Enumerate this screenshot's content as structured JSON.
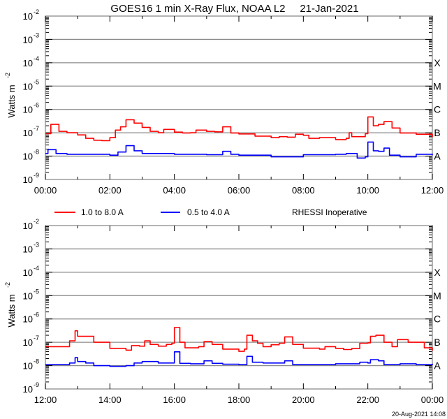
{
  "chart_data": [
    {
      "type": "line",
      "title": "GOES16 1 min X-Ray Flux, NOAA L2     21-Jan-2021",
      "ylabel": "Watts m",
      "ylabel_exponent": "-2",
      "yscale": "log",
      "ylim": [
        1e-09,
        0.01
      ],
      "y_ticks": [
        {
          "base": "10",
          "exp": "-2"
        },
        {
          "base": "10",
          "exp": "-3"
        },
        {
          "base": "10",
          "exp": "-4"
        },
        {
          "base": "10",
          "exp": "-5"
        },
        {
          "base": "10",
          "exp": "-6"
        },
        {
          "base": "10",
          "exp": "-7"
        },
        {
          "base": "10",
          "exp": "-8"
        },
        {
          "base": "10",
          "exp": "-9"
        }
      ],
      "xlim": [
        0,
        12
      ],
      "x_ticks": [
        "00:00",
        "02:00",
        "04:00",
        "06:00",
        "08:00",
        "10:00",
        "12:00"
      ],
      "flare_classes": [
        {
          "label": "X",
          "flux": 0.0001
        },
        {
          "label": "M",
          "flux": 1e-05
        },
        {
          "label": "C",
          "flux": 1e-06
        },
        {
          "label": "B",
          "flux": 1e-07
        },
        {
          "label": "A",
          "flux": 1e-08
        }
      ],
      "grid": true,
      "series": [
        {
          "name": "1.0 to 8.0 A",
          "color": "#ff0000",
          "x": [
            0,
            0.17,
            0.42,
            0.67,
            1,
            1.25,
            1.5,
            1.75,
            2,
            2.17,
            2.33,
            2.5,
            2.75,
            3,
            3.25,
            3.5,
            3.67,
            4,
            4.25,
            4.5,
            4.67,
            5,
            5.25,
            5.5,
            5.75,
            6,
            6.5,
            7,
            7.25,
            7.5,
            7.75,
            8,
            8.17,
            8.5,
            9,
            9.33,
            9.42,
            9.5,
            9.75,
            9.92,
            10,
            10.17,
            10.33,
            10.5,
            10.75,
            11,
            11.5,
            12
          ],
          "y": [
            9.1e-08,
            2.3e-07,
            1.15e-07,
            1e-07,
            8.1e-08,
            5.8e-08,
            4.8e-08,
            4.6e-08,
            6.2e-08,
            1.3e-07,
            1.8e-07,
            3.6e-07,
            2.6e-07,
            1.7e-07,
            1.15e-07,
            1e-07,
            1.4e-07,
            1.07e-07,
            9.8e-08,
            1e-07,
            1.3e-07,
            1.15e-07,
            1.1e-07,
            1.8e-07,
            9.8e-08,
            8.9e-08,
            7.2e-08,
            6.2e-08,
            6.8e-08,
            6.5e-08,
            8.7e-08,
            7.8e-08,
            5.8e-08,
            6.2e-08,
            5.1e-08,
            5.8e-08,
            1e-07,
            6.8e-08,
            6.8e-08,
            9.1e-08,
            4.8e-07,
            2e-07,
            2.3e-07,
            3e-07,
            1.6e-07,
            9.8e-08,
            8.7e-08,
            6.5e-08
          ]
        },
        {
          "name": "0.5 to 4.0 A",
          "color": "#0000ff",
          "x": [
            0,
            0.08,
            0.33,
            0.67,
            2,
            2.25,
            2.5,
            2.75,
            3,
            4,
            5,
            5.5,
            5.75,
            6,
            7,
            8,
            9,
            9.33,
            9.67,
            9.92,
            10,
            10.17,
            10.33,
            10.5,
            10.67,
            11,
            11.5,
            12
          ],
          "y": [
            1.3e-08,
            1.9e-08,
            1.3e-08,
            1.2e-08,
            1.1e-08,
            1.5e-08,
            2.8e-08,
            1.7e-08,
            1.3e-08,
            1.2e-08,
            1.15e-08,
            1.6e-08,
            1.2e-08,
            1.1e-08,
            9.3e-09,
            1.15e-08,
            1.2e-08,
            1.3e-08,
            8.3e-09,
            9.3e-09,
            4e-08,
            1.7e-08,
            1.6e-08,
            2.2e-08,
            1.1e-08,
            9.3e-09,
            1.2e-08,
            1.1e-08
          ]
        }
      ]
    },
    {
      "type": "line",
      "ylabel": "Watts m",
      "ylabel_exponent": "-2",
      "yscale": "log",
      "ylim": [
        1e-09,
        0.01
      ],
      "y_ticks": [
        {
          "base": "10",
          "exp": "-2"
        },
        {
          "base": "10",
          "exp": "-3"
        },
        {
          "base": "10",
          "exp": "-4"
        },
        {
          "base": "10",
          "exp": "-5"
        },
        {
          "base": "10",
          "exp": "-6"
        },
        {
          "base": "10",
          "exp": "-7"
        },
        {
          "base": "10",
          "exp": "-8"
        },
        {
          "base": "10",
          "exp": "-9"
        }
      ],
      "xlim": [
        12,
        24
      ],
      "x_ticks": [
        "12:00",
        "14:00",
        "16:00",
        "18:00",
        "20:00",
        "22:00",
        "00:00"
      ],
      "flare_classes": [
        {
          "label": "X",
          "flux": 0.0001
        },
        {
          "label": "M",
          "flux": 1e-05
        },
        {
          "label": "C",
          "flux": 1e-06
        },
        {
          "label": "B",
          "flux": 1e-07
        },
        {
          "label": "A",
          "flux": 1e-08
        }
      ],
      "grid": true,
      "series": [
        {
          "name": "1.0 to 8.0 A",
          "color": "#ff0000",
          "x": [
            12,
            12.5,
            12.75,
            12.92,
            13,
            13.25,
            13.5,
            14,
            14.5,
            14.67,
            14.92,
            15.08,
            15.25,
            15.5,
            15.75,
            15.92,
            16,
            16.17,
            16.33,
            16.75,
            16.92,
            17.17,
            17.5,
            18,
            18.17,
            18.25,
            18.42,
            18.58,
            18.75,
            19,
            19.25,
            19.42,
            19.67,
            20,
            20.5,
            20.67,
            21,
            21.25,
            21.5,
            21.75,
            22,
            22.08,
            22.25,
            22.5,
            22.75,
            22.92,
            23.25,
            23.75,
            24
          ],
          "y": [
            6.5e-08,
            6.5e-08,
            1.15e-07,
            3.1e-07,
            1.8e-07,
            1.8e-07,
            1e-07,
            5.5e-08,
            4.6e-08,
            7.2e-08,
            6.8e-08,
            1.15e-07,
            8.1e-08,
            6.8e-08,
            8.1e-08,
            9.1e-08,
            4.3e-07,
            1e-07,
            5.8e-08,
            6.5e-08,
            1.07e-07,
            8.1e-08,
            5.1e-08,
            4.1e-08,
            5.1e-08,
            2e-07,
            1.15e-07,
            9.1e-08,
            6.5e-08,
            7.8e-08,
            9.1e-08,
            1.7e-07,
            8.1e-08,
            5.6e-08,
            5.1e-08,
            6.5e-08,
            5.5e-08,
            4.9e-08,
            5.4e-08,
            9.1e-08,
            9.5e-08,
            1.8e-07,
            2e-07,
            1e-07,
            6.5e-08,
            1.3e-07,
            1e-07,
            5.8e-08,
            4.4e-08
          ]
        },
        {
          "name": "0.5 to 4.0 A",
          "color": "#0000ff",
          "x": [
            12,
            12.75,
            12.92,
            13,
            13.25,
            13.5,
            14,
            14.5,
            14.75,
            15,
            15.5,
            15.92,
            16,
            16.17,
            16.5,
            16.92,
            17.17,
            17.5,
            18,
            18.25,
            18.42,
            18.75,
            19,
            19.42,
            19.67,
            20,
            21,
            21.75,
            22,
            22.08,
            22.33,
            22.5,
            23,
            23.5,
            24
          ],
          "y": [
            1.1e-08,
            1.3e-08,
            2.2e-08,
            1.5e-08,
            1.3e-08,
            1e-08,
            9.3e-09,
            1e-08,
            1.3e-08,
            1.5e-08,
            1.3e-08,
            1.3e-08,
            3.9e-08,
            1.25e-08,
            1.2e-08,
            1.6e-08,
            1.25e-08,
            1.15e-08,
            1.1e-08,
            2.5e-08,
            1.4e-08,
            1.3e-08,
            1.3e-08,
            1.6e-08,
            1.1e-08,
            1.1e-08,
            1.2e-08,
            1.4e-08,
            1.3e-08,
            1.8e-08,
            1.6e-08,
            1.1e-08,
            1.2e-08,
            1.1e-08,
            1.2e-08
          ]
        }
      ]
    }
  ],
  "legend": {
    "items": [
      {
        "label": "1.0 to 8.0 A",
        "color": "#ff0000"
      },
      {
        "label": "0.5 to 4.0 A",
        "color": "#0000ff"
      }
    ],
    "note": "RHESSI Inoperative"
  },
  "timestamp": "20-Aug-2021 14:08",
  "colors": {
    "grid": "#8c8c8c",
    "axis": "#8c8c8c"
  }
}
